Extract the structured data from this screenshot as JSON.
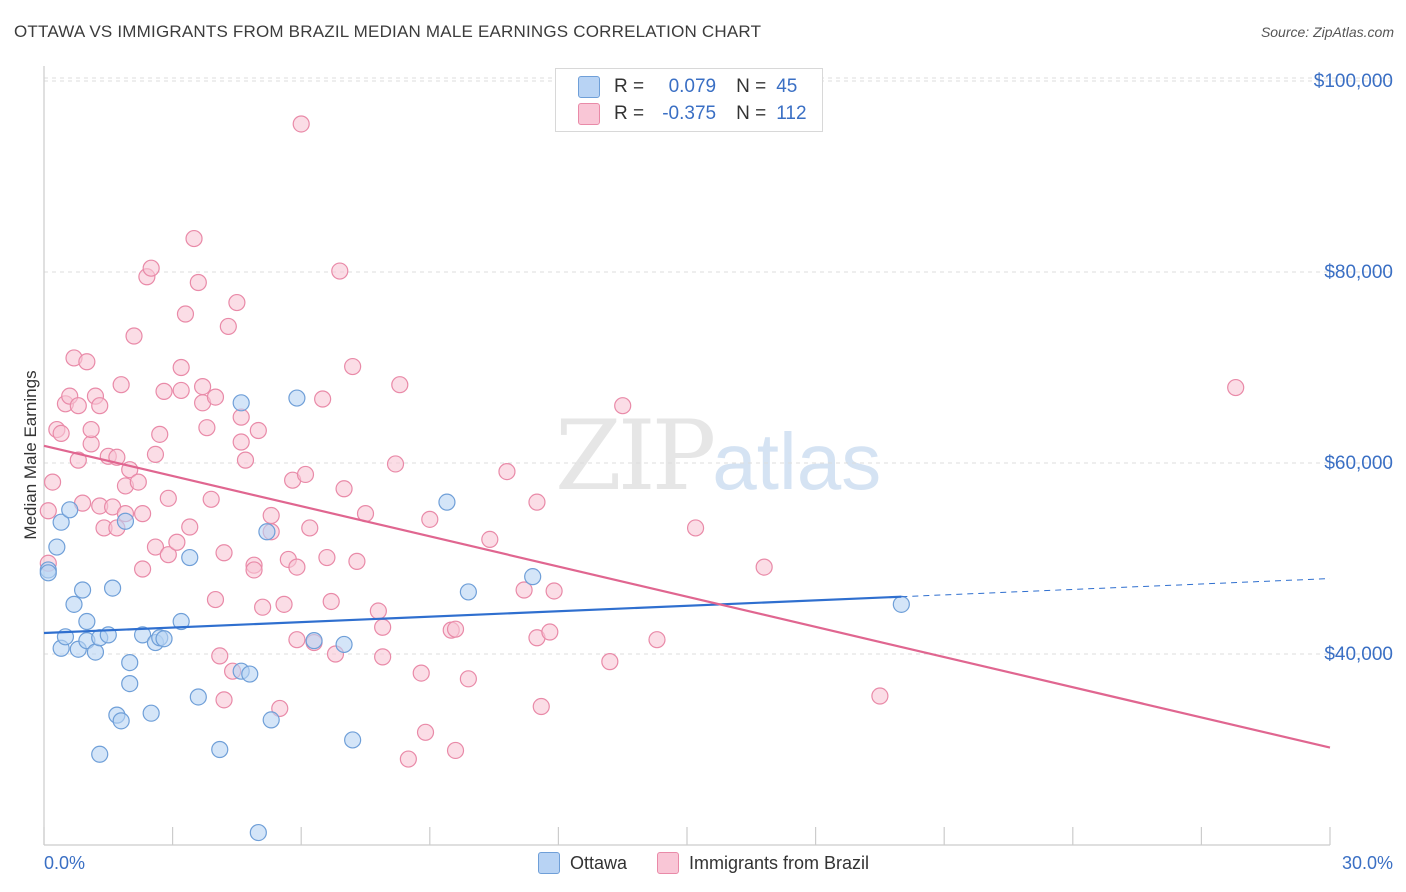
{
  "header": {
    "title": "OTTAWA VS IMMIGRANTS FROM BRAZIL MEDIAN MALE EARNINGS CORRELATION CHART",
    "source": "Source: ZipAtlas.com"
  },
  "watermark": {
    "zip": "ZIP",
    "atlas": "atlas"
  },
  "legend": {
    "rows": [
      {
        "r_label": "R =",
        "r_value": "0.079",
        "n_label": "N =",
        "n_value": "45"
      },
      {
        "r_label": "R =",
        "r_value": "-0.375",
        "n_label": "N =",
        "n_value": "112"
      }
    ]
  },
  "bottom_legend": {
    "ottawa": "Ottawa",
    "brazil": "Immigrants from Brazil"
  },
  "colors": {
    "ottawa_fill": "#b8d3f4",
    "ottawa_stroke": "#6f9fd8",
    "ottawa_line": "#2f6fcf",
    "brazil_fill": "#f9c6d6",
    "brazil_stroke": "#e98aa8",
    "brazil_line": "#e06690",
    "tick_label": "#3a6fc4",
    "grid": "#dcdcdc"
  },
  "chart_data": {
    "type": "scatter",
    "title": "OTTAWA VS IMMIGRANTS FROM BRAZIL MEDIAN MALE EARNINGS CORRELATION CHART",
    "xlabel": "",
    "ylabel": "Median Male Earnings",
    "xlim": [
      0,
      30
    ],
    "ylim": [
      20000,
      102000
    ],
    "x_tick_labels": [
      "0.0%",
      "30.0%"
    ],
    "y_ticks": [
      40000,
      60000,
      80000,
      100000
    ],
    "y_tick_labels": [
      "$40,000",
      "$60,000",
      "$80,000",
      "$100,000"
    ],
    "grid": true,
    "legend_position": "top-center",
    "series": [
      {
        "name": "Ottawa",
        "r": 0.079,
        "n": 45,
        "trend": {
          "x": [
            0,
            20
          ],
          "y": [
            42200,
            46000
          ],
          "dashed_to": [
            30,
            47900
          ]
        },
        "points": [
          [
            0.1,
            48800
          ],
          [
            0.1,
            48500
          ],
          [
            0.3,
            51200
          ],
          [
            0.4,
            40600
          ],
          [
            0.4,
            53800
          ],
          [
            0.5,
            41800
          ],
          [
            0.6,
            55100
          ],
          [
            0.7,
            45200
          ],
          [
            0.8,
            40500
          ],
          [
            0.9,
            46700
          ],
          [
            1.0,
            43400
          ],
          [
            1.0,
            41400
          ],
          [
            1.2,
            40200
          ],
          [
            1.3,
            41700
          ],
          [
            1.3,
            29500
          ],
          [
            1.5,
            42000
          ],
          [
            1.6,
            46900
          ],
          [
            1.7,
            33600
          ],
          [
            1.8,
            33000
          ],
          [
            1.9,
            53900
          ],
          [
            2.0,
            36900
          ],
          [
            2.0,
            39100
          ],
          [
            2.3,
            42000
          ],
          [
            2.5,
            33800
          ],
          [
            2.6,
            41200
          ],
          [
            2.7,
            41700
          ],
          [
            2.8,
            41600
          ],
          [
            3.2,
            43400
          ],
          [
            3.4,
            50100
          ],
          [
            3.6,
            35500
          ],
          [
            4.1,
            30000
          ],
          [
            4.6,
            66300
          ],
          [
            4.6,
            38200
          ],
          [
            4.8,
            37900
          ],
          [
            5.0,
            21300
          ],
          [
            5.2,
            52800
          ],
          [
            5.3,
            33100
          ],
          [
            5.9,
            66800
          ],
          [
            6.3,
            41400
          ],
          [
            7.0,
            41000
          ],
          [
            7.2,
            31000
          ],
          [
            9.4,
            55900
          ],
          [
            9.9,
            46500
          ],
          [
            11.4,
            48100
          ],
          [
            20.0,
            45200
          ]
        ]
      },
      {
        "name": "Immigrants from Brazil",
        "r": -0.375,
        "n": 112,
        "trend": {
          "x": [
            0,
            30
          ],
          "y": [
            61800,
            30200
          ]
        },
        "points": [
          [
            0.1,
            55000
          ],
          [
            0.1,
            49500
          ],
          [
            0.2,
            58000
          ],
          [
            0.3,
            63500
          ],
          [
            0.4,
            63100
          ],
          [
            0.5,
            66200
          ],
          [
            0.6,
            67000
          ],
          [
            0.7,
            71000
          ],
          [
            0.8,
            66000
          ],
          [
            0.8,
            60300
          ],
          [
            0.9,
            55800
          ],
          [
            1.0,
            70600
          ],
          [
            1.1,
            62000
          ],
          [
            1.1,
            63500
          ],
          [
            1.2,
            67000
          ],
          [
            1.3,
            66000
          ],
          [
            1.3,
            55500
          ],
          [
            1.4,
            53200
          ],
          [
            1.5,
            60700
          ],
          [
            1.6,
            55400
          ],
          [
            1.7,
            60600
          ],
          [
            1.7,
            53200
          ],
          [
            1.8,
            68200
          ],
          [
            1.9,
            54700
          ],
          [
            1.9,
            57600
          ],
          [
            2.0,
            59300
          ],
          [
            2.1,
            73300
          ],
          [
            2.2,
            58000
          ],
          [
            2.3,
            54700
          ],
          [
            2.3,
            48900
          ],
          [
            2.4,
            79500
          ],
          [
            2.5,
            80400
          ],
          [
            2.6,
            60900
          ],
          [
            2.6,
            51200
          ],
          [
            2.7,
            63000
          ],
          [
            2.8,
            67500
          ],
          [
            2.9,
            56300
          ],
          [
            2.9,
            50400
          ],
          [
            3.1,
            51700
          ],
          [
            3.2,
            70000
          ],
          [
            3.2,
            67600
          ],
          [
            3.3,
            75600
          ],
          [
            3.4,
            53300
          ],
          [
            3.5,
            83500
          ],
          [
            3.6,
            78900
          ],
          [
            3.7,
            66300
          ],
          [
            3.7,
            68000
          ],
          [
            3.8,
            63700
          ],
          [
            3.9,
            56200
          ],
          [
            4.0,
            66900
          ],
          [
            4.0,
            45700
          ],
          [
            4.1,
            39800
          ],
          [
            4.2,
            50600
          ],
          [
            4.2,
            35200
          ],
          [
            4.3,
            74300
          ],
          [
            4.4,
            38200
          ],
          [
            4.5,
            76800
          ],
          [
            4.6,
            64800
          ],
          [
            4.6,
            62200
          ],
          [
            4.7,
            60300
          ],
          [
            4.9,
            49300
          ],
          [
            4.9,
            48800
          ],
          [
            5.0,
            63400
          ],
          [
            5.1,
            44900
          ],
          [
            5.3,
            52800
          ],
          [
            5.3,
            54500
          ],
          [
            5.5,
            34300
          ],
          [
            5.6,
            45200
          ],
          [
            5.7,
            49900
          ],
          [
            5.8,
            58200
          ],
          [
            5.9,
            41500
          ],
          [
            5.9,
            49100
          ],
          [
            6.0,
            95500
          ],
          [
            6.1,
            58800
          ],
          [
            6.2,
            53200
          ],
          [
            6.3,
            41200
          ],
          [
            6.5,
            66700
          ],
          [
            6.6,
            50100
          ],
          [
            6.7,
            45500
          ],
          [
            6.8,
            40000
          ],
          [
            6.9,
            80100
          ],
          [
            7.0,
            57300
          ],
          [
            7.2,
            70100
          ],
          [
            7.3,
            49700
          ],
          [
            7.5,
            54700
          ],
          [
            7.8,
            44500
          ],
          [
            7.9,
            42800
          ],
          [
            7.9,
            39700
          ],
          [
            8.2,
            59900
          ],
          [
            8.3,
            68200
          ],
          [
            8.5,
            29000
          ],
          [
            8.8,
            38000
          ],
          [
            8.9,
            31800
          ],
          [
            9.0,
            54100
          ],
          [
            9.5,
            42500
          ],
          [
            9.6,
            29900
          ],
          [
            9.6,
            42600
          ],
          [
            9.9,
            37400
          ],
          [
            10.4,
            52000
          ],
          [
            10.8,
            59100
          ],
          [
            11.2,
            46700
          ],
          [
            11.5,
            55900
          ],
          [
            11.5,
            41700
          ],
          [
            11.6,
            34500
          ],
          [
            11.8,
            42300
          ],
          [
            11.9,
            46600
          ],
          [
            13.2,
            39200
          ],
          [
            13.5,
            66000
          ],
          [
            14.3,
            41500
          ],
          [
            15.2,
            53200
          ],
          [
            16.8,
            49100
          ],
          [
            19.5,
            35600
          ],
          [
            27.8,
            67900
          ]
        ]
      }
    ]
  }
}
